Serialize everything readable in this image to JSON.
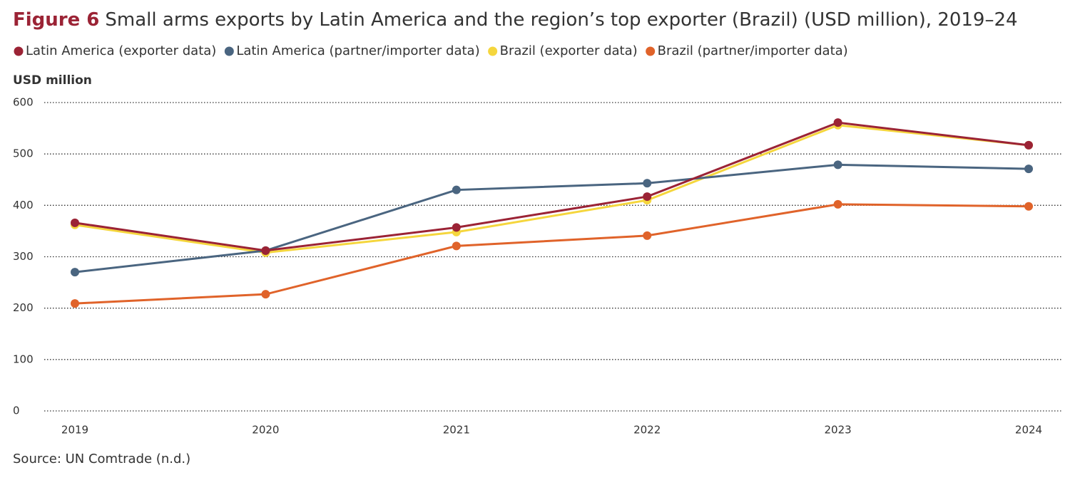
{
  "chart_data": {
    "type": "line",
    "label": "Figure 6",
    "title": "Small arms exports by Latin America and the region’s top exporter (Brazil) (USD million), 2019–24",
    "y_label": "USD million",
    "source": "Source: UN Comtrade (n.d.)",
    "categories": [
      "2019",
      "2020",
      "2021",
      "2022",
      "2023",
      "2024"
    ],
    "series": [
      {
        "name": "Latin America (exporter data)",
        "color": "#9b2335",
        "values": [
          366,
          312,
          357,
          417,
          561,
          517
        ]
      },
      {
        "name": "Latin America (partner/importer data)",
        "color": "#4a6580",
        "values": [
          270,
          312,
          430,
          443,
          479,
          471
        ]
      },
      {
        "name": "Brazil (exporter data)",
        "color": "#f5d63d",
        "values": [
          362,
          308,
          348,
          410,
          556,
          517
        ]
      },
      {
        "name": "Brazil (partner/importer data)",
        "color": "#e0632a",
        "values": [
          209,
          227,
          321,
          341,
          402,
          398
        ]
      }
    ],
    "ylim": [
      0,
      600
    ],
    "yticks": [
      0,
      100,
      200,
      300,
      400,
      500,
      600
    ],
    "grid": true
  }
}
